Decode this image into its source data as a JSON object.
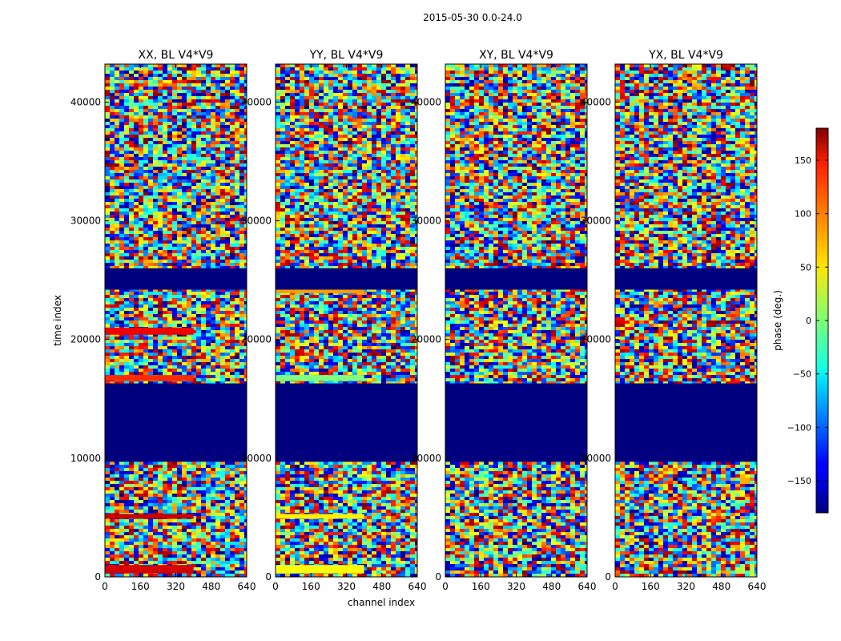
{
  "chart_data": {
    "type": "heatmap",
    "suptitle": "2015-05-30 0.0-24.0",
    "xlabel": "channel index",
    "ylabel": "time index",
    "xlim": [
      0,
      640
    ],
    "ylim": [
      0,
      43200
    ],
    "xticks": [
      0,
      160,
      320,
      480,
      640
    ],
    "yticks": [
      0,
      10000,
      20000,
      30000,
      40000
    ],
    "panels": [
      {
        "title": "XX, BL V4*V9",
        "pol": "XX"
      },
      {
        "title": "YY, BL V4*V9",
        "pol": "YY"
      },
      {
        "title": "XY, BL V4*V9",
        "pol": "XY"
      },
      {
        "title": "YX, BL V4*V9",
        "pol": "YX"
      }
    ],
    "colorbar": {
      "label": "phase (deg.)",
      "range": [
        -180,
        180
      ],
      "ticks": [
        150,
        100,
        50,
        0,
        -50,
        -100,
        -150
      ],
      "colormap": "jet"
    },
    "flagged_time_ranges": [
      [
        9700,
        16300
      ],
      [
        24200,
        26000
      ]
    ],
    "coherent_bands": [
      {
        "pol": "XX",
        "from": 300,
        "to": 1000,
        "phase": 150
      },
      {
        "pol": "XX",
        "from": 4900,
        "to": 5300,
        "phase": 155
      },
      {
        "pol": "XX",
        "from": 16500,
        "to": 17000,
        "phase": 120
      },
      {
        "pol": "XX",
        "from": 20400,
        "to": 21000,
        "phase": 140
      },
      {
        "pol": "YY",
        "from": 300,
        "to": 1000,
        "phase": 45
      },
      {
        "pol": "YY",
        "from": 4900,
        "to": 5300,
        "phase": 50
      },
      {
        "pol": "YY",
        "from": 16500,
        "to": 17000,
        "phase": 0
      },
      {
        "pol": "YY",
        "from": 23900,
        "to": 24200,
        "phase": 80
      }
    ]
  }
}
